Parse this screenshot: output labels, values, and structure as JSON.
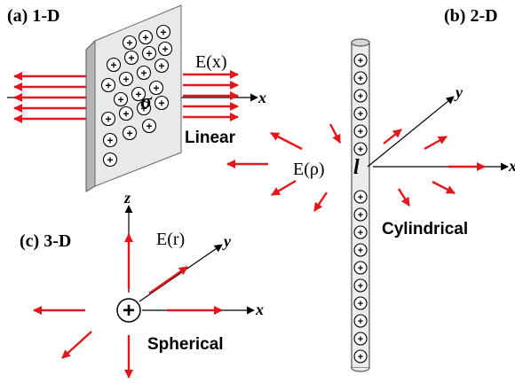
{
  "panels": {
    "linear": {
      "tag": "(a) 1-D",
      "field": "E(x)",
      "density": "σ",
      "name": "Linear",
      "axis_x": "x"
    },
    "cylindrical": {
      "tag": "(b) 2-D",
      "field": "E(ρ)",
      "line_density": "l",
      "name": "Cylindrical",
      "axis_x": "x",
      "axis_y": "y"
    },
    "spherical": {
      "tag": "(c) 3-D",
      "field": "E(r)",
      "charge_symbol": "+",
      "name": "Spherical",
      "axis_x": "x",
      "axis_y": "y",
      "axis_z": "z"
    }
  },
  "charge_symbol": "+",
  "colors": {
    "field_arrow": "#e3161b",
    "axis": "#000000",
    "plate_face": "#e9e9e9",
    "plate_edge": "#c9c9c9",
    "rod": "#ececec"
  }
}
